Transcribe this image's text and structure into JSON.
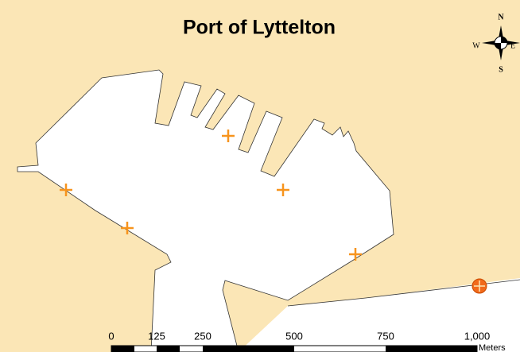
{
  "title": "Port of Lyttelton",
  "compass": {
    "north": "N",
    "south": "S",
    "east": "E",
    "west": "W"
  },
  "scale_bar": {
    "labels": [
      "0",
      "125",
      "250",
      "500",
      "750",
      "1,000"
    ],
    "units": "Meters"
  }
}
